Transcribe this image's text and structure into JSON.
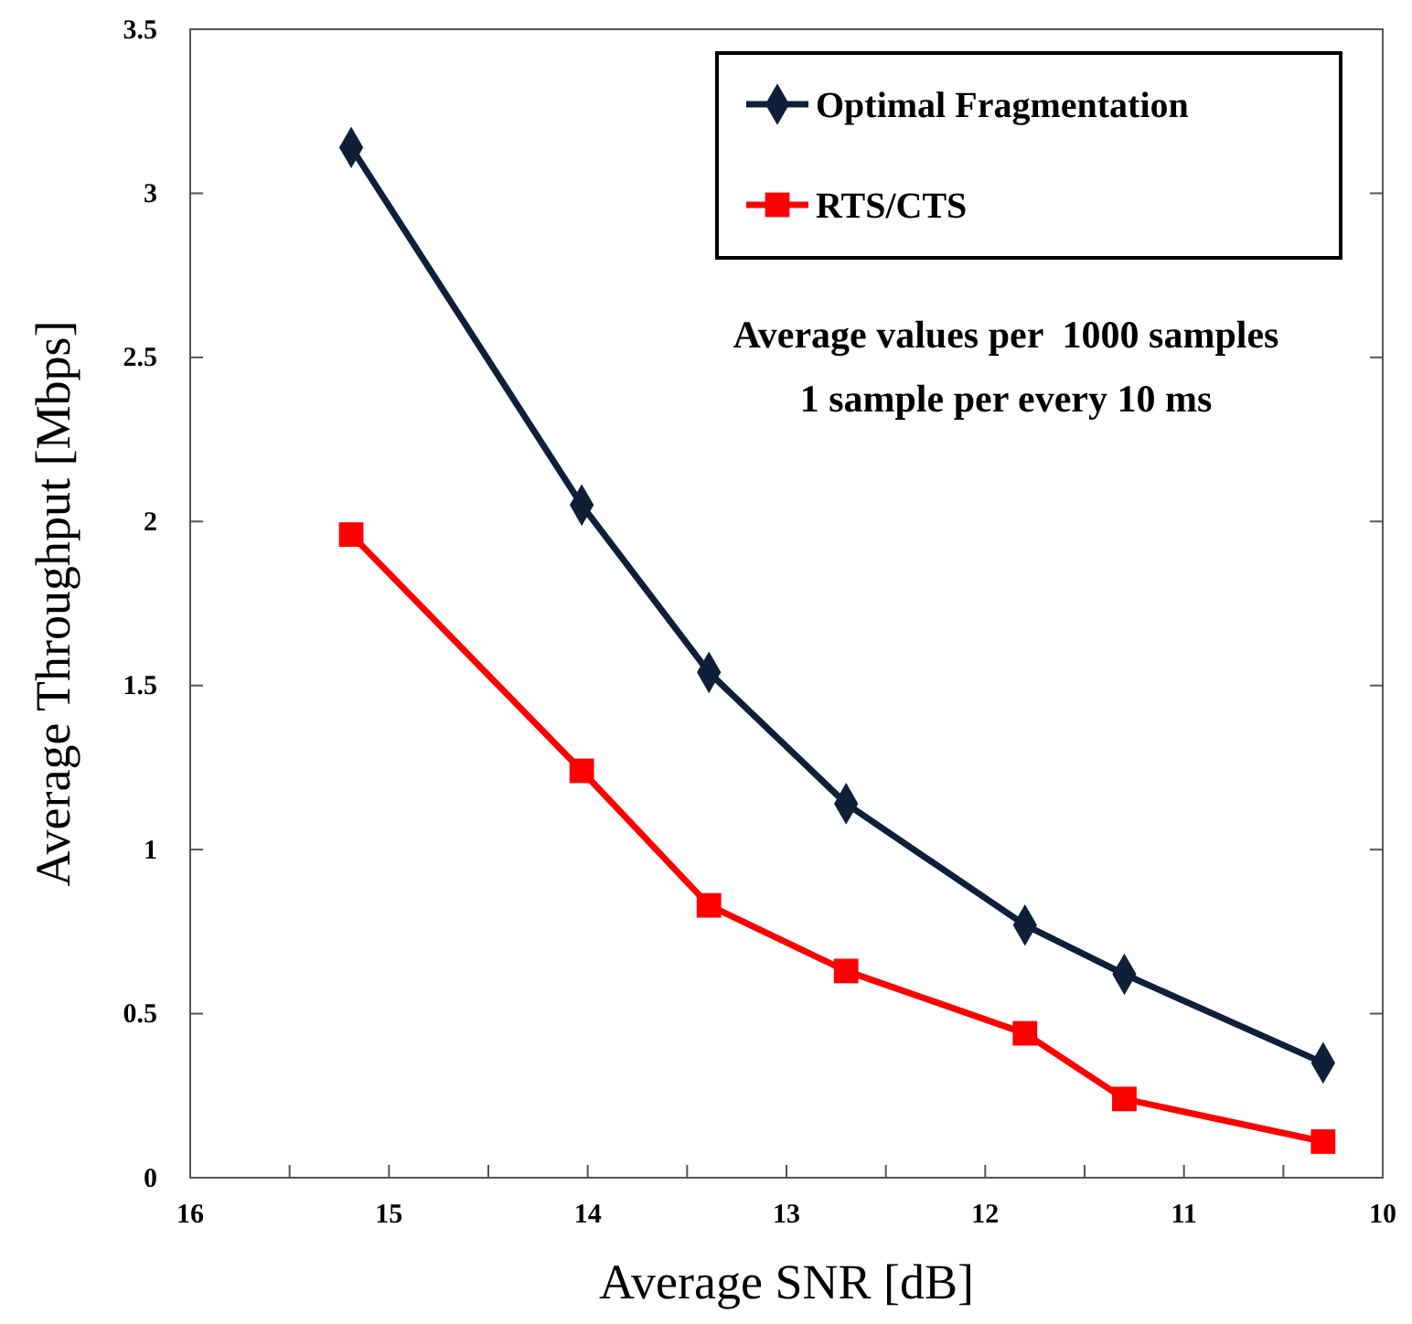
{
  "chart_data": {
    "type": "line",
    "xlabel": "Average SNR [dB]",
    "ylabel": "Average Throughput [Mbps]",
    "annotations": [
      "Average values per  1000 samples",
      "1 sample per every 10 ms"
    ],
    "x": [
      15.19,
      14.03,
      13.39,
      12.7,
      11.8,
      11.3,
      10.3
    ],
    "series": [
      {
        "name": "Optimal Fragmentation",
        "color": "#0f1f38",
        "marker": "diamond",
        "values": [
          3.14,
          2.05,
          1.54,
          1.14,
          0.77,
          0.62,
          0.35
        ]
      },
      {
        "name": "RTS/CTS",
        "color": "#ff0000",
        "marker": "square",
        "values": [
          1.96,
          1.24,
          0.83,
          0.63,
          0.44,
          0.24,
          0.11
        ]
      }
    ],
    "xlim": [
      16,
      10
    ],
    "xticks": [
      16,
      {
        "value": 15.5,
        "label": null
      },
      15,
      {
        "value": 14.5,
        "label": null
      },
      14,
      {
        "value": 13.5,
        "label": null
      },
      13,
      {
        "value": 12.5,
        "label": null
      },
      12,
      {
        "value": 11.5,
        "label": null
      },
      11,
      {
        "value": 10.5,
        "label": null
      },
      10
    ],
    "ylim": [
      0,
      3.5
    ],
    "yticks": [
      0,
      0.5,
      1,
      1.5,
      2,
      2.5,
      3,
      3.5
    ],
    "grid": false,
    "legend": "top right",
    "line_style": "solid"
  }
}
